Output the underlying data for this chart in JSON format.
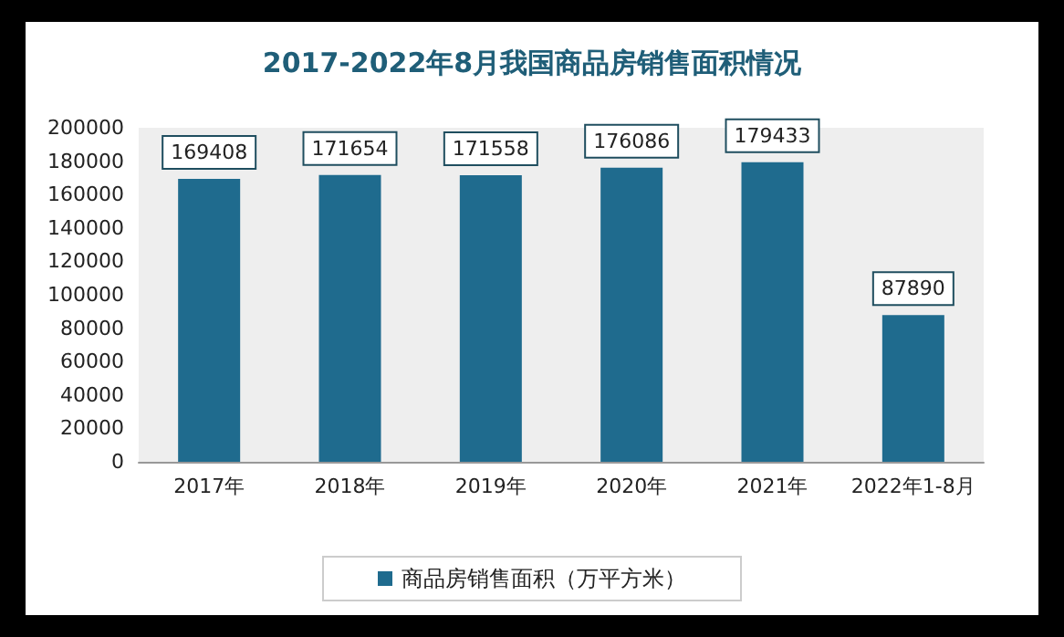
{
  "chart_data": {
    "type": "bar",
    "title": "2017-2022年8月我国商品房销售面积情况",
    "categories": [
      "2017年",
      "2018年",
      "2019年",
      "2020年",
      "2021年",
      "2022年1-8月"
    ],
    "series": [
      {
        "name": "商品房销售面积（万平方米）",
        "color": "#1f6b8e",
        "values": [
          169408,
          171654,
          171558,
          176086,
          179433,
          87890
        ]
      }
    ],
    "ylim": [
      0,
      200000
    ],
    "yticks": [
      0,
      20000,
      40000,
      60000,
      80000,
      100000,
      120000,
      140000,
      160000,
      180000,
      200000
    ],
    "grid": false,
    "legend": "bottom",
    "data_labels": true
  }
}
